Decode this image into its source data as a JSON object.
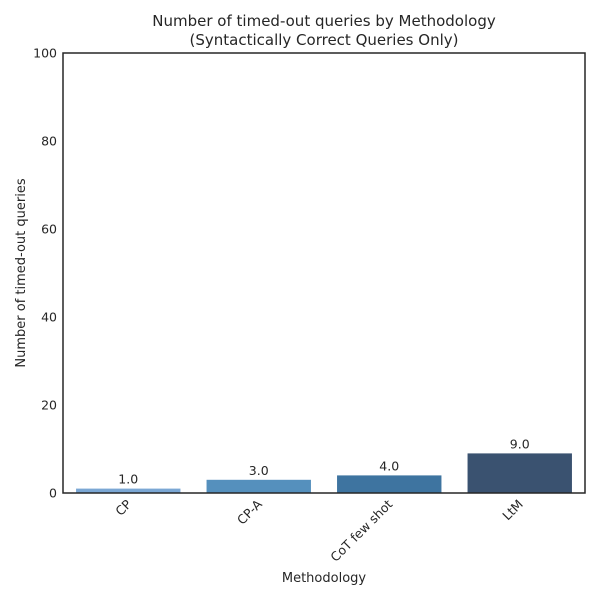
{
  "chart_data": {
    "type": "bar",
    "title": "Number of timed-out queries by Methodology",
    "subtitle": "(Syntactically Correct Queries Only)",
    "xlabel": "Methodology",
    "ylabel": "Number of timed-out queries",
    "categories": [
      "CP",
      "CP-A",
      "CoT few shot",
      "LtM"
    ],
    "values": [
      1.0,
      3.0,
      4.0,
      9.0
    ],
    "data_labels": [
      "1.0",
      "3.0",
      "4.0",
      "9.0"
    ],
    "ylim": [
      0,
      100
    ],
    "yticks": [
      0,
      20,
      40,
      60,
      80,
      100
    ],
    "grid": false,
    "legend": "none",
    "colors": [
      "#7ba7d4",
      "#5590bd",
      "#3e74a0",
      "#3a5270"
    ]
  }
}
